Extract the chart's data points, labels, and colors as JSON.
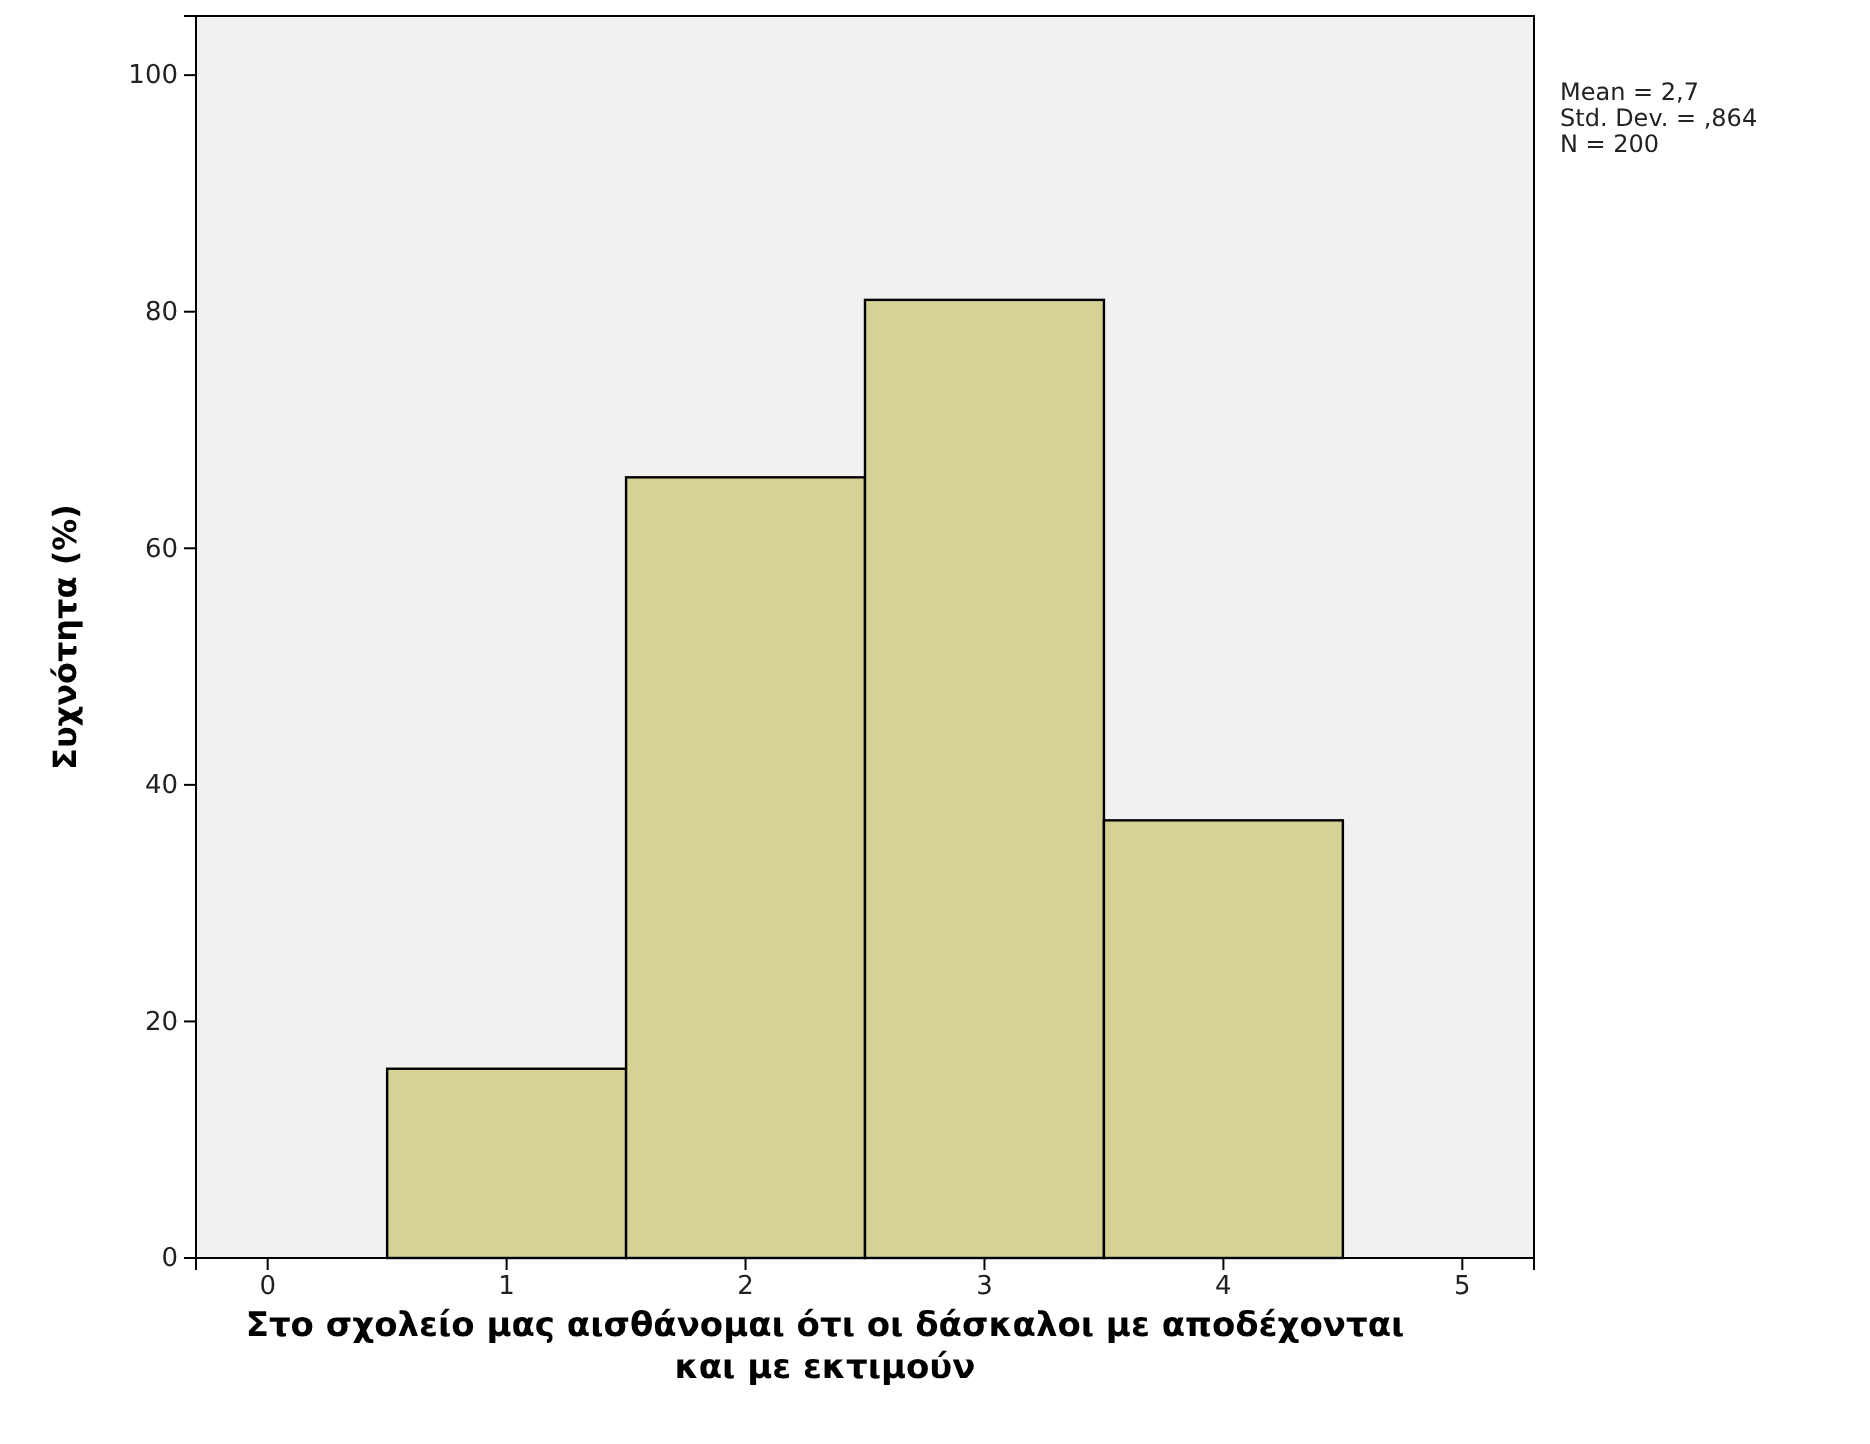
{
  "chart_data": {
    "type": "histogram",
    "xlabel": "Στο σχολείο μας αισθάνομαι ότι οι δάσκαλοι με αποδέχονται και με εκτιμούν",
    "ylabel": "Συχνότητα (%)",
    "bins": [
      0.5,
      1.5,
      2.5,
      3.5,
      4.5
    ],
    "values": [
      16,
      66,
      81,
      37
    ],
    "color": "#d6d195",
    "xlim": [
      -0.3,
      5.3
    ],
    "xticks": [
      0,
      1,
      2,
      3,
      4,
      5
    ],
    "ylim": [
      0,
      105
    ],
    "yticks": [
      0,
      20,
      40,
      60,
      80,
      100
    ],
    "annotations": [
      "Mean = 2,7",
      "Std. Dev. = ,864",
      "N = 200"
    ]
  }
}
